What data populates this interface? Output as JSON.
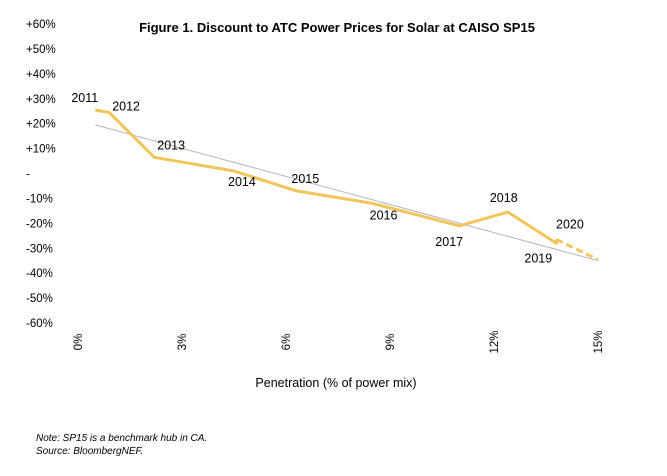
{
  "chart_data": {
    "type": "line",
    "title": "Figure 1. Discount to ATC Power Prices for Solar at CAISO SP15",
    "xlabel": "Penetration (% of power mix)",
    "ylabel": "",
    "xlim": [
      0,
      15
    ],
    "ylim": [
      -60,
      60
    ],
    "x_ticks": [
      0,
      3,
      6,
      9,
      12,
      15
    ],
    "x_tick_labels": [
      "0%",
      "3%",
      "6%",
      "9%",
      "12%",
      "15%"
    ],
    "y_ticks": [
      60,
      50,
      40,
      30,
      20,
      10,
      0,
      -10,
      -20,
      -30,
      -40,
      -50,
      -60
    ],
    "y_tick_labels": [
      "+60%",
      "+50%",
      "+40%",
      "+30%",
      "+20%",
      "+10%",
      "-",
      "-10%",
      "-20%",
      "-30%",
      "-40%",
      "-50%",
      "-60%"
    ],
    "series": [
      {
        "name": "Discount",
        "color": "#F2C55C",
        "x": [
          0.5,
          0.9,
          2.2,
          4.5,
          6.3,
          8.5,
          11.0,
          12.4,
          13.8,
          13.8
        ],
        "y": [
          25.5,
          24.5,
          6.5,
          1.0,
          -7.0,
          -12.0,
          -21.0,
          -15.5,
          -28.0,
          -26.5
        ],
        "labels": [
          "2011",
          "2012",
          "2013",
          "2014",
          "2015",
          "2016",
          "2017",
          "2018",
          "2019",
          ""
        ]
      },
      {
        "name": "Forecast",
        "color": "#F2C55C",
        "style": "dashed",
        "x": [
          13.8,
          15.0
        ],
        "y": [
          -26.5,
          -34.5
        ],
        "labels": [
          "",
          "2020"
        ]
      },
      {
        "name": "Trend",
        "color": "#B4B4B4",
        "x": [
          0.5,
          15.0
        ],
        "y": [
          19.5,
          -35.0
        ],
        "labels": []
      }
    ]
  },
  "notes": {
    "note": "Note: SP15 is a benchmark hub in CA.",
    "source": "Source: BloombergNEF."
  }
}
